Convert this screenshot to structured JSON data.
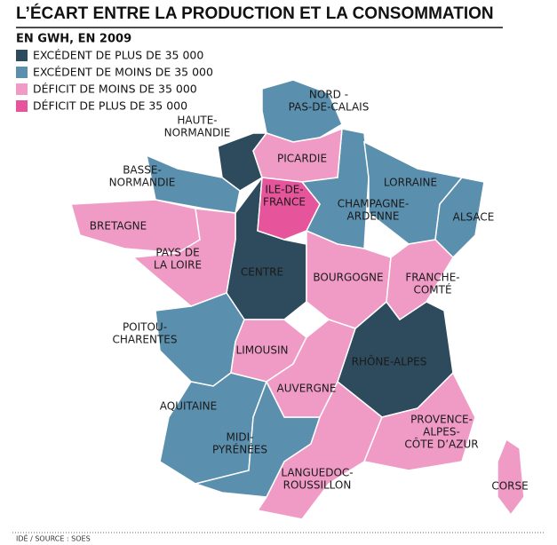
{
  "header": {
    "title": "L’ÉCART ENTRE LA PRODUCTION ET LA CONSOMMATION",
    "subtitle": "EN GWH, EN 2009"
  },
  "legend": [
    {
      "label": "EXCÉDENT DE PLUS DE 35 000",
      "color": "#2d4b5c",
      "regions": [
        {
          "label_lines": [
            "HAUTE-",
            "NORMANDIE"
          ]
        },
        {
          "label_lines": [
            "CENTRE"
          ]
        },
        {
          "label_lines": [
            "RHÔNE-ALPES"
          ]
        }
      ]
    },
    {
      "label": "EXCÉDENT DE MOINS DE 35 000",
      "color": "#5a8fae",
      "regions": [
        {
          "label_lines": [
            "NORD -",
            "PAS-DE-CALAIS"
          ]
        },
        {
          "label_lines": [
            "BASSE-",
            "NORMANDIE"
          ]
        },
        {
          "label_lines": [
            "CHAMPAGNE-",
            "ARDENNE"
          ]
        },
        {
          "label_lines": [
            "LORRAINE"
          ]
        },
        {
          "label_lines": [
            "ALSACE"
          ]
        },
        {
          "label_lines": [
            "POITOU-",
            "CHARENTES"
          ]
        },
        {
          "label_lines": [
            "AQUITAINE"
          ]
        },
        {
          "label_lines": [
            "MIDI-",
            "PYRÉNÉES"
          ]
        }
      ]
    },
    {
      "label": "DÉFICIT DE MOINS DE 35 000",
      "color": "#f09bc6",
      "regions": [
        {
          "label_lines": [
            "PICARDIE"
          ]
        },
        {
          "label_lines": [
            "BRETAGNE"
          ]
        },
        {
          "label_lines": [
            "PAYS DE",
            "LA LOIRE"
          ]
        },
        {
          "label_lines": [
            "BOURGOGNE"
          ]
        },
        {
          "label_lines": [
            "FRANCHE-",
            "COMTÉ"
          ]
        },
        {
          "label_lines": [
            "LIMOUSIN"
          ]
        },
        {
          "label_lines": [
            "AUVERGNE"
          ]
        },
        {
          "label_lines": [
            "LANGUEDOC-",
            "ROUSSILLON"
          ]
        },
        {
          "label_lines": [
            "PROVENCE-",
            "ALPES-",
            "CÔTE D’AZUR"
          ]
        },
        {
          "label_lines": [
            "CORSE"
          ]
        }
      ]
    },
    {
      "label": "DÉFICIT DE PLUS DE 35 000",
      "color": "#e6559b",
      "regions": [
        {
          "label_lines": [
            "ILE-DE-",
            "FRANCE"
          ]
        }
      ]
    }
  ],
  "footer": {
    "source": "IDÉ / SOURCE : SOES"
  }
}
